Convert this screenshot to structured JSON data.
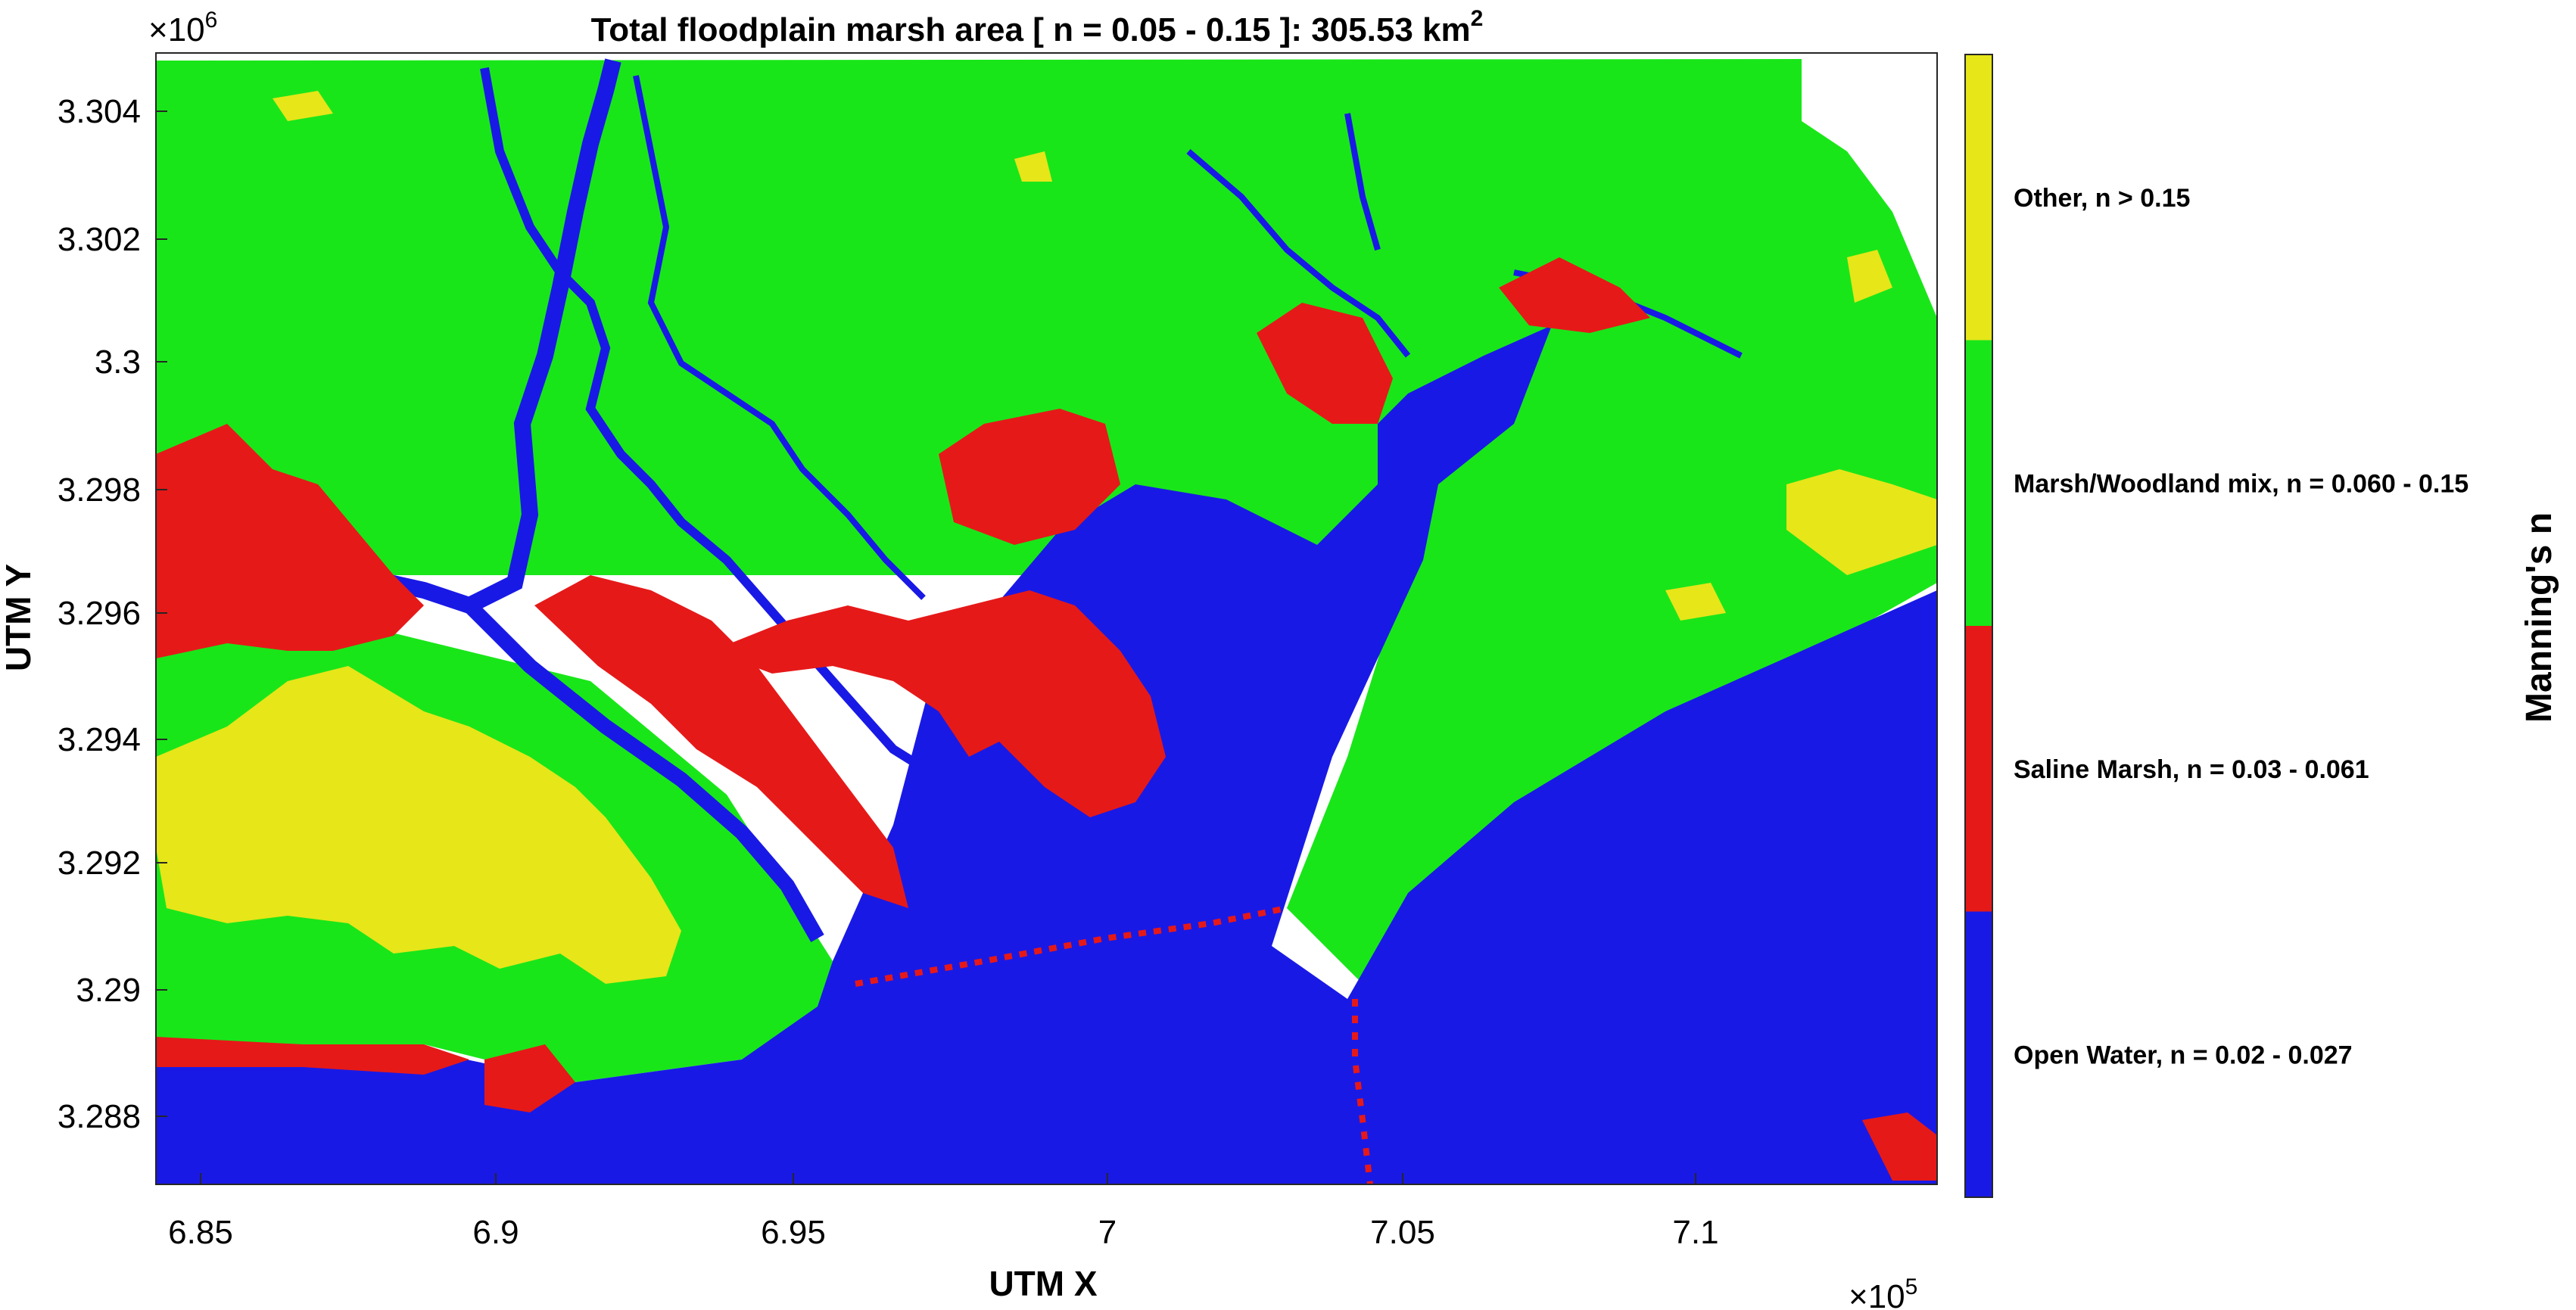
{
  "figure": {
    "title_main": "Total floodplain marsh area [ n = 0.05 - 0.15 ]: 305.53 km",
    "title_sup": "2",
    "xlabel": "UTM X",
    "ylabel": "UTM Y",
    "x_multiplier": {
      "base": "×10",
      "exp": "5"
    },
    "y_multiplier": {
      "base": "×10",
      "exp": "6"
    },
    "x_ticks": [
      "6.85",
      "6.9",
      "6.95",
      "7",
      "7.05",
      "7.1"
    ],
    "y_ticks": [
      "3.304",
      "3.302",
      "3.3",
      "3.298",
      "3.296",
      "3.294",
      "3.292",
      "3.29",
      "3.288"
    ]
  },
  "colorbar": {
    "title": "Manning's n",
    "classes": [
      {
        "label": "Other, n > 0.15",
        "color": "#e6e619"
      },
      {
        "label": "Marsh/Woodland mix, n = 0.060 - 0.15",
        "color": "#19e619"
      },
      {
        "label": "Saline Marsh, n = 0.03 - 0.061",
        "color": "#e61919"
      },
      {
        "label": "Open Water, n = 0.02 - 0.027",
        "color": "#1919e6"
      }
    ]
  },
  "map_colors": {
    "water": "#1919e6",
    "marsh_woodland": "#19e619",
    "saline_marsh": "#e61919",
    "other": "#e6e619"
  }
}
